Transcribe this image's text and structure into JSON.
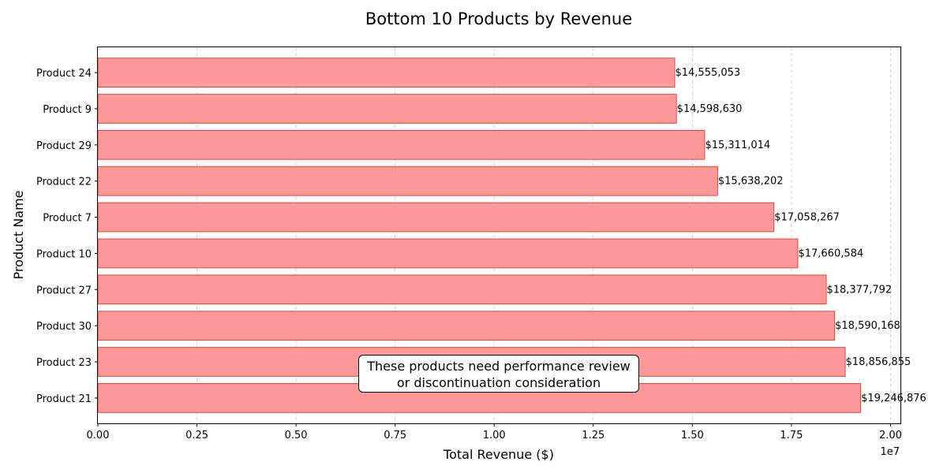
{
  "chart_data": {
    "type": "bar",
    "orientation": "horizontal",
    "title": "Bottom 10 Products by Revenue",
    "xlabel": "Total Revenue ($)",
    "ylabel": "Product Name",
    "x_scale_exponent_label": "1e7",
    "xlim": [
      0,
      20250000
    ],
    "x_ticks": [
      0,
      2500000,
      5000000,
      7500000,
      10000000,
      12500000,
      15000000,
      17500000,
      20000000
    ],
    "x_tick_labels": [
      "0.00",
      "0.25",
      "0.50",
      "0.75",
      "1.00",
      "1.25",
      "1.50",
      "1.75",
      "2.00"
    ],
    "grid": "x-dashed",
    "bar_color": "#ff9999",
    "bar_edge_color": "#e84040",
    "categories": [
      "Product 24",
      "Product 9",
      "Product 29",
      "Product 22",
      "Product 7",
      "Product 10",
      "Product 27",
      "Product 30",
      "Product 23",
      "Product 21"
    ],
    "values": [
      14555053,
      14598630,
      15311014,
      15638202,
      17058267,
      17660584,
      18377792,
      18590168,
      18856855,
      19246876
    ],
    "value_labels": [
      "$14,555,053",
      "$14,598,630",
      "$15,311,014",
      "$15,638,202",
      "$17,058,267",
      "$17,660,584",
      "$18,377,792",
      "$18,590,168",
      "$18,856,855",
      "$19,246,876"
    ],
    "annotation": [
      "These products need performance review",
      "or discontinuation consideration"
    ]
  }
}
